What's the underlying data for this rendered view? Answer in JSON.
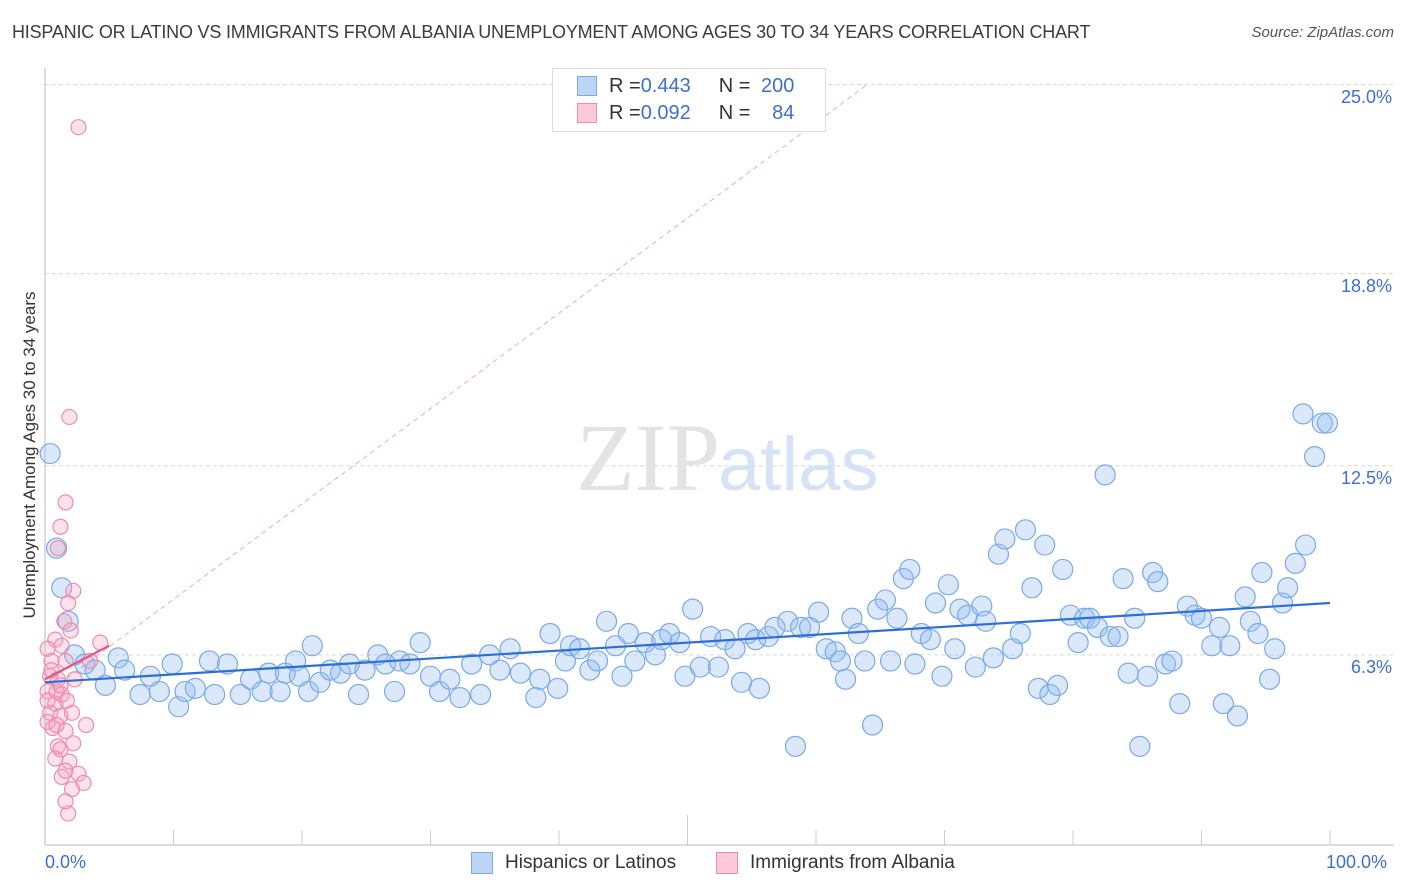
{
  "title": "HISPANIC OR LATINO VS IMMIGRANTS FROM ALBANIA UNEMPLOYMENT AMONG AGES 30 TO 34 YEARS CORRELATION CHART",
  "source": "Source: ZipAtlas.com",
  "watermark": "ZIPatlas",
  "chart_data": {
    "type": "scatter",
    "xlabel": "",
    "ylabel": "Unemployment Among Ages 30 to 34 years",
    "xlim": [
      0,
      100
    ],
    "ylim": [
      0,
      25
    ],
    "x_tick_labels": [
      "0.0%",
      "100.0%"
    ],
    "y_ticks": [
      6.3,
      12.5,
      18.8,
      25.0
    ],
    "y_tick_labels": [
      "6.3%",
      "12.5%",
      "18.8%",
      "25.0%"
    ],
    "legend": [
      {
        "name": "Hispanics or Latinos",
        "r_label": "R = ",
        "r": "0.443",
        "n_label": "N = ",
        "n": "200",
        "color": "#7aaae8"
      },
      {
        "name": "Immigrants from Albania",
        "r_label": "R = ",
        "r": "0.092",
        "n_label": "N = ",
        "n": "84",
        "color": "#f08cab"
      }
    ],
    "series": [
      {
        "name": "Hispanics or Latinos",
        "color": "#7aaae8",
        "trend": [
          [
            0,
            5.4
          ],
          [
            100,
            8.0
          ]
        ],
        "points": [
          [
            0.4,
            12.9
          ],
          [
            0.9,
            9.8
          ],
          [
            1.3,
            8.5
          ],
          [
            1.8,
            7.4
          ],
          [
            2.3,
            6.3
          ],
          [
            3.1,
            6.0
          ],
          [
            3.9,
            5.8
          ],
          [
            4.7,
            5.3
          ],
          [
            5.7,
            6.2
          ],
          [
            6.2,
            5.8
          ],
          [
            7.4,
            5.0
          ],
          [
            8.2,
            5.6
          ],
          [
            8.9,
            5.1
          ],
          [
            9.9,
            6.0
          ],
          [
            10.4,
            4.6
          ],
          [
            10.9,
            5.1
          ],
          [
            11.7,
            5.2
          ],
          [
            12.8,
            6.1
          ],
          [
            13.2,
            5.0
          ],
          [
            14.2,
            6.0
          ],
          [
            15.2,
            5.0
          ],
          [
            16.0,
            5.5
          ],
          [
            16.9,
            5.1
          ],
          [
            17.4,
            5.7
          ],
          [
            18.3,
            5.1
          ],
          [
            18.7,
            5.7
          ],
          [
            19.5,
            6.1
          ],
          [
            19.8,
            5.6
          ],
          [
            20.5,
            5.1
          ],
          [
            20.8,
            6.6
          ],
          [
            21.4,
            5.4
          ],
          [
            22.2,
            5.8
          ],
          [
            23.0,
            5.7
          ],
          [
            23.7,
            6.0
          ],
          [
            24.4,
            5.0
          ],
          [
            24.9,
            5.8
          ],
          [
            25.9,
            6.3
          ],
          [
            26.5,
            6.0
          ],
          [
            27.2,
            5.1
          ],
          [
            27.6,
            6.1
          ],
          [
            28.4,
            6.0
          ],
          [
            29.2,
            6.7
          ],
          [
            30.0,
            5.6
          ],
          [
            30.7,
            5.1
          ],
          [
            31.5,
            5.5
          ],
          [
            32.3,
            4.9
          ],
          [
            33.2,
            6.0
          ],
          [
            33.9,
            5.0
          ],
          [
            34.6,
            6.3
          ],
          [
            35.4,
            5.8
          ],
          [
            36.2,
            6.5
          ],
          [
            37.0,
            5.7
          ],
          [
            38.2,
            4.9
          ],
          [
            38.5,
            5.5
          ],
          [
            39.3,
            7.0
          ],
          [
            39.9,
            5.2
          ],
          [
            40.5,
            6.1
          ],
          [
            40.9,
            6.6
          ],
          [
            41.6,
            6.5
          ],
          [
            42.4,
            5.8
          ],
          [
            43.0,
            6.1
          ],
          [
            43.7,
            7.4
          ],
          [
            44.4,
            6.6
          ],
          [
            44.9,
            5.6
          ],
          [
            45.4,
            7.0
          ],
          [
            45.9,
            6.1
          ],
          [
            46.7,
            6.7
          ],
          [
            47.5,
            6.3
          ],
          [
            48.0,
            6.8
          ],
          [
            48.6,
            7.0
          ],
          [
            49.4,
            6.7
          ],
          [
            49.8,
            5.6
          ],
          [
            50.4,
            7.8
          ],
          [
            51.0,
            5.9
          ],
          [
            51.8,
            6.9
          ],
          [
            52.4,
            5.9
          ],
          [
            52.9,
            6.8
          ],
          [
            53.7,
            6.5
          ],
          [
            54.2,
            5.4
          ],
          [
            54.7,
            7.0
          ],
          [
            55.3,
            6.8
          ],
          [
            55.6,
            5.2
          ],
          [
            56.3,
            6.9
          ],
          [
            56.8,
            7.2
          ],
          [
            57.8,
            7.4
          ],
          [
            58.4,
            3.3
          ],
          [
            58.8,
            7.2
          ],
          [
            59.5,
            7.2
          ],
          [
            60.2,
            7.7
          ],
          [
            60.8,
            6.5
          ],
          [
            61.5,
            6.4
          ],
          [
            61.9,
            6.1
          ],
          [
            62.3,
            5.5
          ],
          [
            62.8,
            7.5
          ],
          [
            63.3,
            7.0
          ],
          [
            63.8,
            6.1
          ],
          [
            64.4,
            4.0
          ],
          [
            64.8,
            7.8
          ],
          [
            65.4,
            8.1
          ],
          [
            65.8,
            6.1
          ],
          [
            66.3,
            7.5
          ],
          [
            66.8,
            8.8
          ],
          [
            67.3,
            9.1
          ],
          [
            67.7,
            6.0
          ],
          [
            68.2,
            7.0
          ],
          [
            68.9,
            6.8
          ],
          [
            69.3,
            8.0
          ],
          [
            69.8,
            5.6
          ],
          [
            70.3,
            8.6
          ],
          [
            70.8,
            6.5
          ],
          [
            71.2,
            7.8
          ],
          [
            71.8,
            7.6
          ],
          [
            72.4,
            5.9
          ],
          [
            72.9,
            7.9
          ],
          [
            73.2,
            7.4
          ],
          [
            73.8,
            6.2
          ],
          [
            74.2,
            9.6
          ],
          [
            74.7,
            10.1
          ],
          [
            75.3,
            6.5
          ],
          [
            75.9,
            7.0
          ],
          [
            76.3,
            10.4
          ],
          [
            76.8,
            8.5
          ],
          [
            77.3,
            5.2
          ],
          [
            77.8,
            9.9
          ],
          [
            78.2,
            5.0
          ],
          [
            78.8,
            5.3
          ],
          [
            79.2,
            9.1
          ],
          [
            79.8,
            7.6
          ],
          [
            80.4,
            6.7
          ],
          [
            80.9,
            7.5
          ],
          [
            81.3,
            7.5
          ],
          [
            81.9,
            7.2
          ],
          [
            82.5,
            12.2
          ],
          [
            82.9,
            6.9
          ],
          [
            83.5,
            6.9
          ],
          [
            83.9,
            8.8
          ],
          [
            84.3,
            5.7
          ],
          [
            84.8,
            7.5
          ],
          [
            85.2,
            3.3
          ],
          [
            85.8,
            5.6
          ],
          [
            86.2,
            9.0
          ],
          [
            86.6,
            8.7
          ],
          [
            87.2,
            6.0
          ],
          [
            87.7,
            6.1
          ],
          [
            88.3,
            4.7
          ],
          [
            88.9,
            7.9
          ],
          [
            89.5,
            7.6
          ],
          [
            90.0,
            7.5
          ],
          [
            90.8,
            6.6
          ],
          [
            91.4,
            7.2
          ],
          [
            91.7,
            4.7
          ],
          [
            92.2,
            6.6
          ],
          [
            92.8,
            4.3
          ],
          [
            93.4,
            8.2
          ],
          [
            93.8,
            7.4
          ],
          [
            94.4,
            7.0
          ],
          [
            94.7,
            9.0
          ],
          [
            95.3,
            5.5
          ],
          [
            95.7,
            6.5
          ],
          [
            96.3,
            8.0
          ],
          [
            96.7,
            8.5
          ],
          [
            97.3,
            9.3
          ],
          [
            97.9,
            14.2
          ],
          [
            98.1,
            9.9
          ],
          [
            98.8,
            12.8
          ],
          [
            99.4,
            13.9
          ],
          [
            99.8,
            13.9
          ]
        ]
      },
      {
        "name": "Immigrants from Albania",
        "color": "#f08cab",
        "trend": [
          [
            0,
            5.5
          ],
          [
            5,
            6.6
          ]
        ],
        "diagonal": [
          [
            0,
            5.0
          ],
          [
            64,
            25.0
          ]
        ],
        "points": [
          [
            2.6,
            23.6
          ],
          [
            1.9,
            14.1
          ],
          [
            1.6,
            11.3
          ],
          [
            1.2,
            10.5
          ],
          [
            1.0,
            9.8
          ],
          [
            2.2,
            8.4
          ],
          [
            1.8,
            8.0
          ],
          [
            1.5,
            7.4
          ],
          [
            2.0,
            7.1
          ],
          [
            0.8,
            6.8
          ],
          [
            0.2,
            6.5
          ],
          [
            1.3,
            6.6
          ],
          [
            4.3,
            6.7
          ],
          [
            0.5,
            6.1
          ],
          [
            1.6,
            6.1
          ],
          [
            0.4,
            5.6
          ],
          [
            1.0,
            5.5
          ],
          [
            0.2,
            5.1
          ],
          [
            1.3,
            5.0
          ],
          [
            0.8,
            4.7
          ],
          [
            0.4,
            4.4
          ],
          [
            1.2,
            4.3
          ],
          [
            2.1,
            4.4
          ],
          [
            0.6,
            3.9
          ],
          [
            3.2,
            4.0
          ],
          [
            1.6,
            3.8
          ],
          [
            1.0,
            3.3
          ],
          [
            2.2,
            3.4
          ],
          [
            1.2,
            3.2
          ],
          [
            0.8,
            2.9
          ],
          [
            1.9,
            2.8
          ],
          [
            1.6,
            2.5
          ],
          [
            2.6,
            2.4
          ],
          [
            1.3,
            2.3
          ],
          [
            3.0,
            2.1
          ],
          [
            2.1,
            1.9
          ],
          [
            1.6,
            1.5
          ],
          [
            1.8,
            1.1
          ],
          [
            0.2,
            4.8
          ],
          [
            0.9,
            5.1
          ],
          [
            1.7,
            4.8
          ],
          [
            0.5,
            5.8
          ],
          [
            1.2,
            5.3
          ],
          [
            2.3,
            5.5
          ],
          [
            3.5,
            6.1
          ],
          [
            0.2,
            4.1
          ],
          [
            0.9,
            4.0
          ]
        ]
      }
    ]
  }
}
